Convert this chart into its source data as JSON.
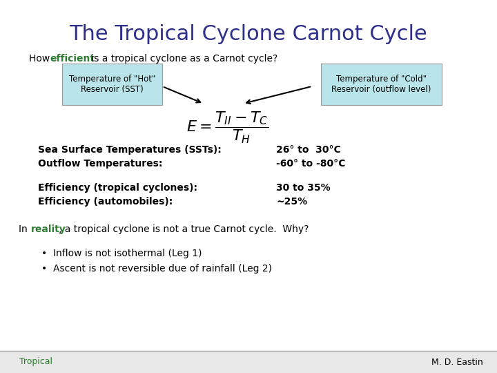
{
  "title": "The Tropical Cyclone Carnot Cycle",
  "title_color": "#2E2E8B",
  "title_fontsize": 22,
  "efficient_color": "#2e7d32",
  "box_left_text": "Temperature of \"Hot\"\nReservoir (SST)",
  "box_right_text": "Temperature of \"Cold\"\nReservoir (outflow level)",
  "box_color": "#b8e4ea",
  "formula": "$E = \\dfrac{T_{II} - T_C}{T_H}$",
  "data_lines": [
    [
      "Sea Surface Temperatures (SSTs):",
      "26° to  30°C"
    ],
    [
      "Outflow Temperatures:",
      "-60° to -80°C"
    ]
  ],
  "efficiency_lines": [
    [
      "Efficiency (tropical cyclones):",
      "30 to 35%"
    ],
    [
      "Efficiency (automobiles):",
      "~25%"
    ]
  ],
  "reality_color": "#2e7d32",
  "bullets": [
    "Inflow is not isothermal (Leg 1)",
    "Ascent is not reversible due of rainfall (Leg 2)"
  ],
  "footer_left": "Tropical",
  "footer_right": "M. D. Eastin",
  "footer_color": "#2e7d32",
  "footer_bg": "#e8e8e8"
}
